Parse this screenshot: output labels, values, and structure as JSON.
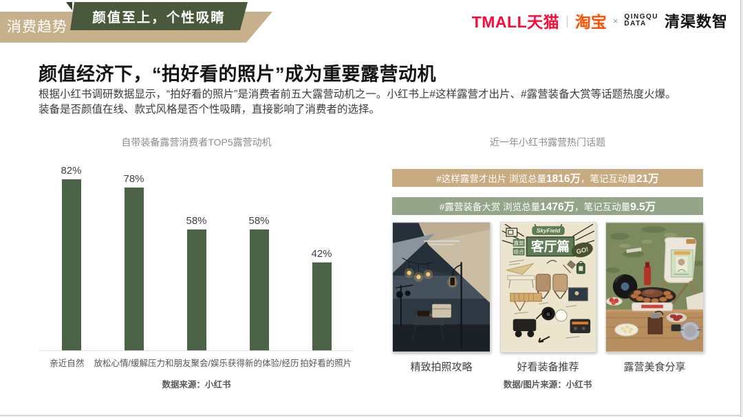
{
  "header": {
    "tab_label": "消费趋势",
    "badge_label": "颜值至上，个性吸睛",
    "logos": {
      "tmall": "TMALL天猫",
      "divider": "|",
      "taobao": "淘宝",
      "cross": "×",
      "qingqu_line1": "QINGQU",
      "qingqu_line2": "DATA",
      "qingqu_cn": "清渠数智"
    }
  },
  "title": "颜值经济下，“拍好看的照片”成为重要露营动机",
  "body_line1": "根据小红书调研数据显示，“拍好看的照片”是消费者前五大露营动机之一。小红书上#这样露营才出片、#露营装备大赏等话题热度火爆。",
  "body_line2": "装备是否颜值在线、款式风格是否个性吸睛，直接影响了消费者的选择。",
  "chart_data": {
    "type": "bar",
    "title": "自带装备露营消费者TOP5露营动机",
    "categories": [
      "亲近自然",
      "放松心情/缓解压力",
      "和朋友聚会/娱乐",
      "获得新的体验/经历",
      "拍好看的照片"
    ],
    "values": [
      82,
      78,
      58,
      58,
      42
    ],
    "value_labels": [
      "82%",
      "78%",
      "58%",
      "58%",
      "42%"
    ],
    "unit": "%",
    "ylim": [
      0,
      100
    ],
    "grid": false,
    "bar_color": "#4d6347",
    "source": "数据来源：小红书"
  },
  "right": {
    "title": "近一年小红书露营热门话题",
    "banners": [
      {
        "lead": "#这样露营才出片  浏览总量",
        "views": "1816万",
        "mid": "，笔记互动量",
        "interactions": "21万",
        "bg": "#c9ab81"
      },
      {
        "lead": "#露营装备大赏  浏览总量",
        "views": "1476万",
        "mid": "，笔记互动量",
        "interactions": "9.5万",
        "bg": "#94a58a"
      }
    ],
    "poster": {
      "brand": "SkyField",
      "tag1": "露营",
      "tag2": "组合",
      "title": "客厅篇",
      "go": "GO!"
    },
    "captions": [
      "精致拍照攻略",
      "好看装备推荐",
      "露营美食分享"
    ],
    "source": "数据/图片来源：小红书"
  },
  "colors": {
    "ribbon_tan": "#c7b08c",
    "badge_green": "#4a593c",
    "bar_green": "#4d6347",
    "banner_tan": "#c9ab81",
    "banner_green": "#94a58a",
    "tmall_red": "#ff0a36",
    "taobao_orange": "#ff5000"
  }
}
